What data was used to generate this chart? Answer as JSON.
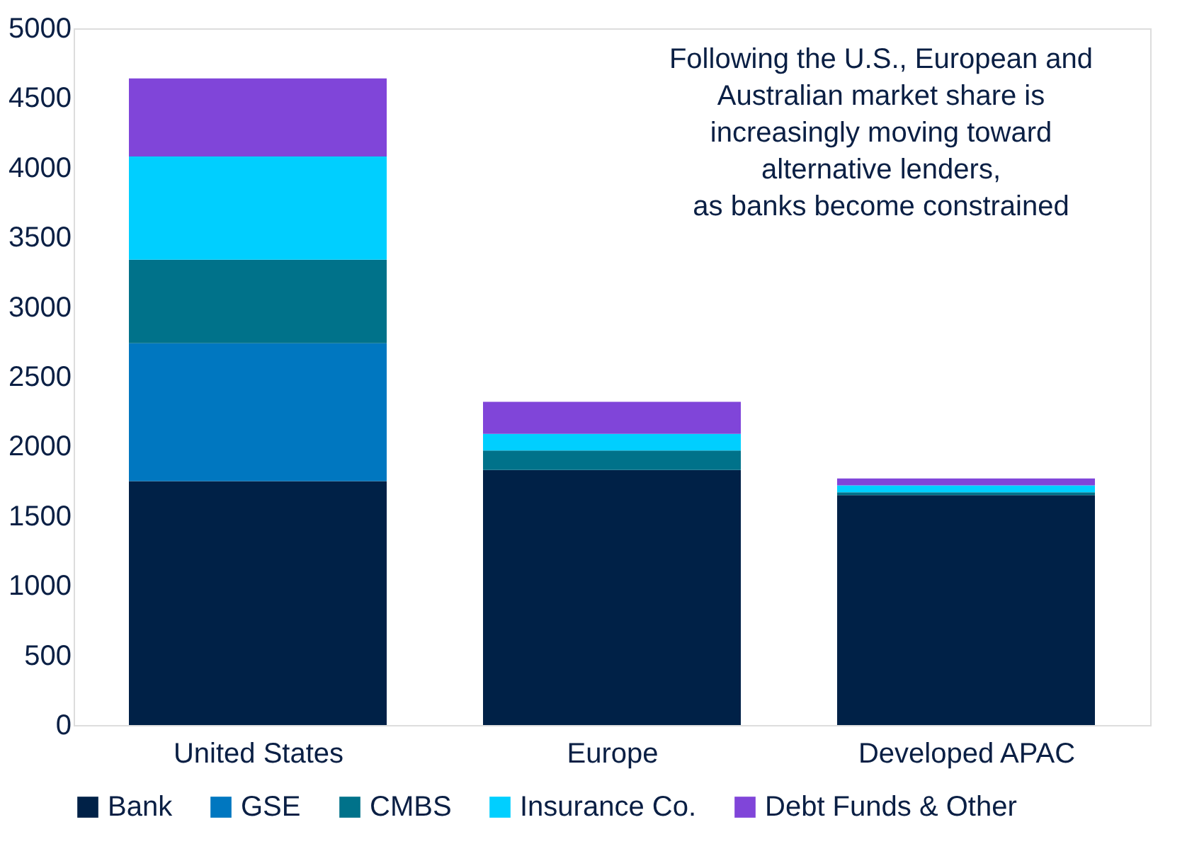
{
  "chart_data": {
    "type": "bar",
    "stacked": true,
    "categories": [
      "United States",
      "Europe",
      "Developed APAC"
    ],
    "series": [
      {
        "name": "Bank",
        "color": "#002147",
        "values": [
          1750,
          1830,
          1650
        ]
      },
      {
        "name": "GSE",
        "color": "#0077c0",
        "values": [
          990,
          0,
          0
        ]
      },
      {
        "name": "CMBS",
        "color": "#00728a",
        "values": [
          600,
          140,
          20
        ]
      },
      {
        "name": "Insurance Co.",
        "color": "#00cfff",
        "values": [
          740,
          120,
          50
        ]
      },
      {
        "name": "Debt Funds & Other",
        "color": "#8045d9",
        "values": [
          560,
          230,
          50
        ]
      }
    ],
    "ylim": [
      0,
      5000
    ],
    "yticks": [
      0,
      500,
      1000,
      1500,
      2000,
      2500,
      3000,
      3500,
      4000,
      4500,
      5000
    ],
    "grid": false,
    "legend": "bottom",
    "annotations": [
      "Following the U.S., European and\nAustralian market share is\nincreasingly moving toward\nalternative lenders,\nas banks become constrained"
    ]
  }
}
